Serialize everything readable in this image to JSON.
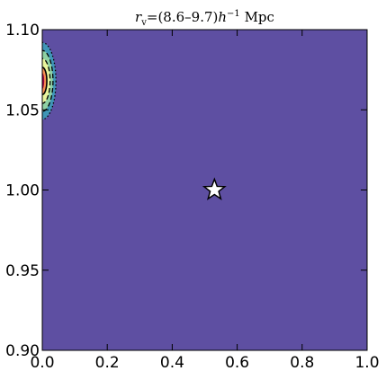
{
  "chart_data": {
    "type": "contour",
    "title": "r_v=(8.6–9.7)h^-1 Mpc",
    "title_parts": {
      "symbol": "r",
      "subscript": "v",
      "equals": "=",
      "range": "(8.6–9.7)",
      "h": "h",
      "exponent": "−1",
      "unit": " Mpc"
    },
    "xlabel": "",
    "ylabel": "",
    "xlim": [
      0.0,
      1.0
    ],
    "ylim": [
      0.9,
      1.1
    ],
    "x_ticks": [
      0.0,
      0.2,
      0.4,
      0.6,
      0.8,
      1.0
    ],
    "x_tick_labels": [
      "0.0",
      "0.2",
      "0.4",
      "0.6",
      "0.8",
      "1.0"
    ],
    "y_ticks": [
      0.9,
      0.95,
      1.0,
      1.05,
      1.1
    ],
    "y_tick_labels": [
      "0.90",
      "0.95",
      "1.00",
      "1.05",
      "1.10"
    ],
    "grid": false,
    "legend": "none",
    "background_color": "#5e4fa2",
    "contour_peak": {
      "x": 0.0,
      "y": 1.068
    },
    "contour_levels": [
      {
        "rx": 0.042,
        "ry": 0.024,
        "color": "#3f96b7",
        "line": "dotted"
      },
      {
        "rx": 0.033,
        "ry": 0.019,
        "color": "#8fd1a4",
        "line": "dashed"
      },
      {
        "rx": 0.024,
        "ry": 0.014,
        "color": "#e9f59d",
        "line": "dashed"
      },
      {
        "rx": 0.014,
        "ry": 0.0085,
        "color": "#f88e52",
        "line": "solid"
      },
      {
        "rx": 0.006,
        "ry": 0.005,
        "color": "#9e0142",
        "line": "none"
      }
    ],
    "marker": {
      "type": "star",
      "x": 0.53,
      "y": 1.0,
      "fill": "#ffffff",
      "edge": "#000000"
    }
  }
}
